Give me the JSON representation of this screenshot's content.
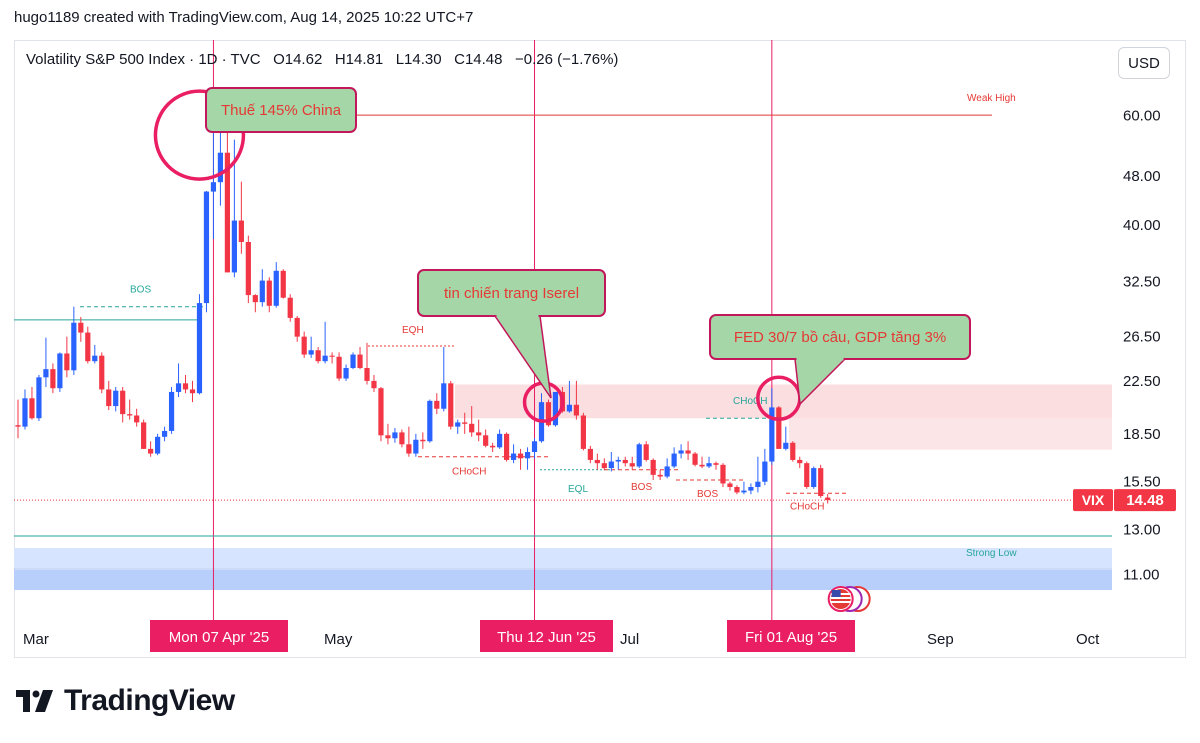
{
  "header": {
    "credit": "hugo1189 created with TradingView.com, Aug 14, 2025 10:22 UTC+7"
  },
  "legend": {
    "symbol": "Volatility S&P 500 Index · 1D · TVC",
    "open": "O14.62",
    "high": "H14.81",
    "low": "L14.30",
    "close": "C14.48",
    "change": "−0.26 (−1.76%)"
  },
  "currency_button": "USD",
  "brand": "TradingView",
  "colors": {
    "up": "#2962ff",
    "down": "#f23645",
    "accent": "#e91e63",
    "callout": "#a5d6a7",
    "callout_border": "#c2185b"
  },
  "chart_data": {
    "type": "candlestick",
    "title": "Volatility S&P 500 Index · 1D · TVC",
    "x_ticks": [
      "Mar",
      "May",
      "Jul",
      "Sep",
      "Oct"
    ],
    "highlighted_dates": [
      "Mon 07 Apr '25",
      "Thu 12 Jun '25",
      "Fri 01 Aug '25"
    ],
    "y_scale": "log",
    "y_ticks": [
      "60.00",
      "48.00",
      "40.00",
      "32.50",
      "26.50",
      "22.50",
      "18.50",
      "15.50",
      "13.00",
      "11.00"
    ],
    "ylim": [
      10,
      72
    ],
    "last_price": {
      "label": "VIX",
      "value": "14.48"
    },
    "callouts": [
      {
        "text": "Thuế 145% China",
        "date": "Mon 07 Apr '25"
      },
      {
        "text": "tin chiến trang Iserel",
        "date": "Thu 12 Jun '25"
      },
      {
        "text": "FED 30/7 bồ câu, GDP tăng 3%",
        "date": "Fri 01 Aug '25"
      }
    ],
    "annotations": [
      "BOS",
      "EQH",
      "CHoCH",
      "EQL",
      "BOS",
      "BOS",
      "CHoCH",
      "CHoCH",
      "Weak High",
      "Strong Low"
    ],
    "series": [
      {
        "d": "Feb 26",
        "o": 19.1,
        "h": 21.0,
        "l": 18.2,
        "c": 19.0
      },
      {
        "d": "Feb 27",
        "o": 19.0,
        "h": 21.8,
        "l": 18.8,
        "c": 21.1
      },
      {
        "d": "Feb 28",
        "o": 21.1,
        "h": 22.0,
        "l": 19.5,
        "c": 19.6
      },
      {
        "d": "Mar 03",
        "o": 19.6,
        "h": 23.0,
        "l": 19.4,
        "c": 22.8
      },
      {
        "d": "Mar 04",
        "o": 22.8,
        "h": 26.4,
        "l": 22.0,
        "c": 23.5
      },
      {
        "d": "Mar 05",
        "o": 23.5,
        "h": 24.0,
        "l": 21.5,
        "c": 21.9
      },
      {
        "d": "Mar 06",
        "o": 21.9,
        "h": 25.0,
        "l": 21.6,
        "c": 24.9
      },
      {
        "d": "Mar 07",
        "o": 24.9,
        "h": 26.5,
        "l": 22.8,
        "c": 23.4
      },
      {
        "d": "Mar 10",
        "o": 23.4,
        "h": 29.6,
        "l": 23.0,
        "c": 27.9
      },
      {
        "d": "Mar 11",
        "o": 27.9,
        "h": 28.5,
        "l": 26.0,
        "c": 26.9
      },
      {
        "d": "Mar 12",
        "o": 26.9,
        "h": 27.5,
        "l": 24.0,
        "c": 24.2
      },
      {
        "d": "Mar 13",
        "o": 24.2,
        "h": 25.7,
        "l": 24.0,
        "c": 24.7
      },
      {
        "d": "Mar 14",
        "o": 24.7,
        "h": 25.0,
        "l": 21.5,
        "c": 21.8
      },
      {
        "d": "Mar 17",
        "o": 21.8,
        "h": 22.5,
        "l": 20.2,
        "c": 20.5
      },
      {
        "d": "Mar 18",
        "o": 20.5,
        "h": 22.0,
        "l": 20.1,
        "c": 21.7
      },
      {
        "d": "Mar 19",
        "o": 21.7,
        "h": 22.0,
        "l": 19.3,
        "c": 19.9
      },
      {
        "d": "Mar 20",
        "o": 19.9,
        "h": 21.0,
        "l": 19.5,
        "c": 19.8
      },
      {
        "d": "Mar 21",
        "o": 19.8,
        "h": 20.3,
        "l": 19.0,
        "c": 19.3
      },
      {
        "d": "Mar 24",
        "o": 19.3,
        "h": 19.5,
        "l": 17.5,
        "c": 17.5
      },
      {
        "d": "Mar 25",
        "o": 17.5,
        "h": 18.0,
        "l": 17.0,
        "c": 17.2
      },
      {
        "d": "Mar 26",
        "o": 17.2,
        "h": 18.5,
        "l": 17.1,
        "c": 18.3
      },
      {
        "d": "Mar 27",
        "o": 18.3,
        "h": 19.0,
        "l": 18.0,
        "c": 18.7
      },
      {
        "d": "Mar 28",
        "o": 18.7,
        "h": 22.0,
        "l": 18.5,
        "c": 21.6
      },
      {
        "d": "Mar 31",
        "o": 21.6,
        "h": 24.0,
        "l": 21.2,
        "c": 22.3
      },
      {
        "d": "Apr 01",
        "o": 22.3,
        "h": 23.0,
        "l": 21.5,
        "c": 21.8
      },
      {
        "d": "Apr 02",
        "o": 21.8,
        "h": 22.5,
        "l": 20.8,
        "c": 21.5
      },
      {
        "d": "Apr 03",
        "o": 21.5,
        "h": 31.0,
        "l": 21.4,
        "c": 30.0
      },
      {
        "d": "Apr 04",
        "o": 30.0,
        "h": 45.4,
        "l": 29.0,
        "c": 45.3
      },
      {
        "d": "Apr 07",
        "o": 45.3,
        "h": 60.1,
        "l": 38.0,
        "c": 46.9
      },
      {
        "d": "Apr 08",
        "o": 46.9,
        "h": 57.5,
        "l": 43.0,
        "c": 52.3
      },
      {
        "d": "Apr 09",
        "o": 52.3,
        "h": 57.5,
        "l": 33.6,
        "c": 33.6
      },
      {
        "d": "Apr 10",
        "o": 33.6,
        "h": 54.9,
        "l": 33.0,
        "c": 40.7
      },
      {
        "d": "Apr 11",
        "o": 40.7,
        "h": 47.0,
        "l": 36.0,
        "c": 37.6
      },
      {
        "d": "Apr 14",
        "o": 37.6,
        "h": 38.5,
        "l": 30.0,
        "c": 30.9
      },
      {
        "d": "Apr 15",
        "o": 30.9,
        "h": 31.0,
        "l": 29.0,
        "c": 30.1
      },
      {
        "d": "Apr 16",
        "o": 30.1,
        "h": 34.0,
        "l": 29.6,
        "c": 32.6
      },
      {
        "d": "Apr 17",
        "o": 32.6,
        "h": 33.0,
        "l": 29.0,
        "c": 29.7
      },
      {
        "d": "Apr 21",
        "o": 29.7,
        "h": 34.9,
        "l": 29.5,
        "c": 33.8
      },
      {
        "d": "Apr 22",
        "o": 33.8,
        "h": 34.0,
        "l": 30.5,
        "c": 30.6
      },
      {
        "d": "Apr 23",
        "o": 30.6,
        "h": 31.0,
        "l": 28.0,
        "c": 28.4
      },
      {
        "d": "Apr 24",
        "o": 28.4,
        "h": 28.6,
        "l": 26.0,
        "c": 26.5
      },
      {
        "d": "Apr 25",
        "o": 26.5,
        "h": 27.0,
        "l": 24.5,
        "c": 24.8
      },
      {
        "d": "Apr 28",
        "o": 24.8,
        "h": 26.5,
        "l": 24.5,
        "c": 25.2
      },
      {
        "d": "Apr 29",
        "o": 25.2,
        "h": 25.5,
        "l": 24.0,
        "c": 24.2
      },
      {
        "d": "Apr 30",
        "o": 24.2,
        "h": 28.0,
        "l": 24.0,
        "c": 24.7
      },
      {
        "d": "May 01",
        "o": 24.7,
        "h": 25.0,
        "l": 24.0,
        "c": 24.6
      },
      {
        "d": "May 02",
        "o": 24.6,
        "h": 25.0,
        "l": 22.5,
        "c": 22.7
      },
      {
        "d": "May 05",
        "o": 22.7,
        "h": 23.9,
        "l": 22.5,
        "c": 23.6
      },
      {
        "d": "May 06",
        "o": 23.6,
        "h": 25.0,
        "l": 23.5,
        "c": 24.8
      },
      {
        "d": "May 07",
        "o": 24.8,
        "h": 25.5,
        "l": 23.5,
        "c": 23.6
      },
      {
        "d": "May 08",
        "o": 23.6,
        "h": 25.9,
        "l": 22.2,
        "c": 22.5
      },
      {
        "d": "May 09",
        "o": 22.5,
        "h": 23.0,
        "l": 21.6,
        "c": 21.9
      },
      {
        "d": "May 12",
        "o": 21.9,
        "h": 22.0,
        "l": 18.0,
        "c": 18.4
      },
      {
        "d": "May 13",
        "o": 18.4,
        "h": 19.2,
        "l": 17.8,
        "c": 18.2
      },
      {
        "d": "May 14",
        "o": 18.2,
        "h": 18.9,
        "l": 17.9,
        "c": 18.6
      },
      {
        "d": "May 15",
        "o": 18.6,
        "h": 18.8,
        "l": 17.6,
        "c": 17.8
      },
      {
        "d": "May 16",
        "o": 17.8,
        "h": 19.0,
        "l": 17.0,
        "c": 17.2
      },
      {
        "d": "May 19",
        "o": 17.2,
        "h": 18.5,
        "l": 17.0,
        "c": 18.1
      },
      {
        "d": "May 20",
        "o": 18.1,
        "h": 18.6,
        "l": 17.5,
        "c": 18.0
      },
      {
        "d": "May 21",
        "o": 18.0,
        "h": 21.0,
        "l": 17.9,
        "c": 20.9
      },
      {
        "d": "May 22",
        "o": 20.9,
        "h": 21.5,
        "l": 19.9,
        "c": 20.3
      },
      {
        "d": "May 23",
        "o": 20.3,
        "h": 25.5,
        "l": 20.1,
        "c": 22.3
      },
      {
        "d": "May 27",
        "o": 22.3,
        "h": 22.5,
        "l": 18.8,
        "c": 19.0
      },
      {
        "d": "May 28",
        "o": 19.0,
        "h": 19.5,
        "l": 18.5,
        "c": 19.3
      },
      {
        "d": "May 29",
        "o": 19.3,
        "h": 20.0,
        "l": 18.5,
        "c": 19.2
      },
      {
        "d": "May 30",
        "o": 19.2,
        "h": 20.5,
        "l": 18.3,
        "c": 18.6
      },
      {
        "d": "Jun 02",
        "o": 18.6,
        "h": 19.5,
        "l": 18.0,
        "c": 18.4
      },
      {
        "d": "Jun 03",
        "o": 18.4,
        "h": 18.8,
        "l": 17.6,
        "c": 17.7
      },
      {
        "d": "Jun 04",
        "o": 17.7,
        "h": 17.9,
        "l": 17.3,
        "c": 17.6
      },
      {
        "d": "Jun 05",
        "o": 17.6,
        "h": 18.8,
        "l": 17.5,
        "c": 18.5
      },
      {
        "d": "Jun 06",
        "o": 18.5,
        "h": 18.6,
        "l": 16.7,
        "c": 16.8
      },
      {
        "d": "Jun 09",
        "o": 16.8,
        "h": 17.8,
        "l": 16.6,
        "c": 17.2
      },
      {
        "d": "Jun 10",
        "o": 17.2,
        "h": 17.5,
        "l": 16.2,
        "c": 16.9
      },
      {
        "d": "Jun 11",
        "o": 16.9,
        "h": 17.6,
        "l": 16.2,
        "c": 17.3
      },
      {
        "d": "Jun 12",
        "o": 17.3,
        "h": 18.2,
        "l": 16.9,
        "c": 18.0
      },
      {
        "d": "Jun 13",
        "o": 18.0,
        "h": 21.5,
        "l": 17.9,
        "c": 20.8
      },
      {
        "d": "Jun 16",
        "o": 20.8,
        "h": 21.0,
        "l": 19.0,
        "c": 19.1
      },
      {
        "d": "Jun 17",
        "o": 19.1,
        "h": 21.6,
        "l": 19.0,
        "c": 21.6
      },
      {
        "d": "Jun 18",
        "o": 21.6,
        "h": 22.0,
        "l": 20.0,
        "c": 20.1
      },
      {
        "d": "Jun 20",
        "o": 20.1,
        "h": 22.5,
        "l": 20.0,
        "c": 20.6
      },
      {
        "d": "Jun 23",
        "o": 20.6,
        "h": 22.5,
        "l": 19.5,
        "c": 19.8
      },
      {
        "d": "Jun 24",
        "o": 19.8,
        "h": 20.0,
        "l": 17.4,
        "c": 17.5
      },
      {
        "d": "Jun 25",
        "o": 17.5,
        "h": 17.7,
        "l": 16.6,
        "c": 16.8
      },
      {
        "d": "Jun 26",
        "o": 16.8,
        "h": 17.2,
        "l": 16.2,
        "c": 16.6
      },
      {
        "d": "Jun 27",
        "o": 16.6,
        "h": 16.9,
        "l": 16.2,
        "c": 16.3
      },
      {
        "d": "Jun 30",
        "o": 16.3,
        "h": 17.3,
        "l": 16.1,
        "c": 16.7
      },
      {
        "d": "Jul 01",
        "o": 16.7,
        "h": 17.0,
        "l": 16.2,
        "c": 16.8
      },
      {
        "d": "Jul 02",
        "o": 16.8,
        "h": 17.0,
        "l": 16.4,
        "c": 16.6
      },
      {
        "d": "Jul 03",
        "o": 16.6,
        "h": 17.0,
        "l": 16.2,
        "c": 16.4
      },
      {
        "d": "Jul 07",
        "o": 16.4,
        "h": 17.9,
        "l": 16.3,
        "c": 17.8
      },
      {
        "d": "Jul 08",
        "o": 17.8,
        "h": 18.0,
        "l": 16.7,
        "c": 16.8
      },
      {
        "d": "Jul 09",
        "o": 16.8,
        "h": 16.9,
        "l": 15.6,
        "c": 15.9
      },
      {
        "d": "Jul 10",
        "o": 15.9,
        "h": 16.2,
        "l": 15.6,
        "c": 15.8
      },
      {
        "d": "Jul 11",
        "o": 15.8,
        "h": 16.9,
        "l": 15.7,
        "c": 16.4
      },
      {
        "d": "Jul 14",
        "o": 16.4,
        "h": 17.6,
        "l": 16.3,
        "c": 17.2
      },
      {
        "d": "Jul 15",
        "o": 17.2,
        "h": 17.8,
        "l": 16.9,
        "c": 17.4
      },
      {
        "d": "Jul 16",
        "o": 17.4,
        "h": 18.0,
        "l": 16.8,
        "c": 17.2
      },
      {
        "d": "Jul 17",
        "o": 17.2,
        "h": 17.3,
        "l": 16.4,
        "c": 16.5
      },
      {
        "d": "Jul 18",
        "o": 16.5,
        "h": 17.0,
        "l": 16.3,
        "c": 16.4
      },
      {
        "d": "Jul 21",
        "o": 16.4,
        "h": 17.0,
        "l": 16.3,
        "c": 16.6
      },
      {
        "d": "Jul 22",
        "o": 16.6,
        "h": 16.7,
        "l": 16.2,
        "c": 16.5
      },
      {
        "d": "Jul 23",
        "o": 16.5,
        "h": 16.6,
        "l": 15.2,
        "c": 15.4
      },
      {
        "d": "Jul 24",
        "o": 15.4,
        "h": 15.5,
        "l": 15.0,
        "c": 15.2
      },
      {
        "d": "Jul 25",
        "o": 15.2,
        "h": 15.3,
        "l": 14.8,
        "c": 14.9
      },
      {
        "d": "Jul 28",
        "o": 14.9,
        "h": 15.5,
        "l": 14.8,
        "c": 15.0
      },
      {
        "d": "Jul 29",
        "o": 15.0,
        "h": 15.4,
        "l": 14.8,
        "c": 15.2
      },
      {
        "d": "Jul 30",
        "o": 15.2,
        "h": 17.0,
        "l": 14.9,
        "c": 15.5
      },
      {
        "d": "Jul 31",
        "o": 15.5,
        "h": 17.5,
        "l": 15.3,
        "c": 16.7
      },
      {
        "d": "Aug 01",
        "o": 16.7,
        "h": 21.9,
        "l": 16.5,
        "c": 20.4
      },
      {
        "d": "Aug 04",
        "o": 20.4,
        "h": 20.5,
        "l": 17.5,
        "c": 17.5
      },
      {
        "d": "Aug 05",
        "o": 17.5,
        "h": 19.0,
        "l": 17.4,
        "c": 17.9
      },
      {
        "d": "Aug 06",
        "o": 17.9,
        "h": 18.0,
        "l": 16.7,
        "c": 16.8
      },
      {
        "d": "Aug 07",
        "o": 16.8,
        "h": 17.0,
        "l": 16.3,
        "c": 16.6
      },
      {
        "d": "Aug 08",
        "o": 16.6,
        "h": 16.7,
        "l": 15.1,
        "c": 15.2
      },
      {
        "d": "Aug 11",
        "o": 15.2,
        "h": 16.4,
        "l": 15.1,
        "c": 16.3
      },
      {
        "d": "Aug 12",
        "o": 16.3,
        "h": 16.5,
        "l": 14.6,
        "c": 14.7
      },
      {
        "d": "Aug 13",
        "o": 14.62,
        "h": 14.81,
        "l": 14.3,
        "c": 14.48
      }
    ]
  }
}
